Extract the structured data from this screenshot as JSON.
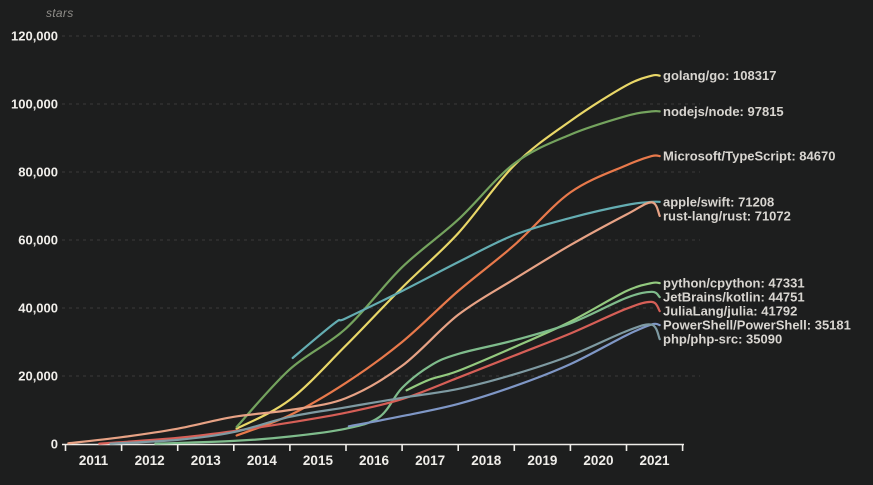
{
  "page": {
    "title": "stars"
  },
  "style": {
    "background": "#1d1e1e",
    "axis_color": "#efede9",
    "grid_color": "#3b3b39",
    "title_color": "#8f8d89",
    "series_label_color": "#d8d5d0",
    "tick_label_color": "#f0eeea"
  },
  "chart_data": {
    "type": "line",
    "title": "stars",
    "xlabel": "",
    "ylabel": "stars",
    "xlim": [
      2011,
      2021.5
    ],
    "ylim": [
      0,
      120000
    ],
    "grid": "horizontal-dashed",
    "legend_position": "right-inline-labels",
    "yticks": {
      "values": [
        0,
        20000,
        40000,
        60000,
        80000,
        100000,
        120000
      ],
      "labels": [
        "0",
        "20,000",
        "40,000",
        "60,000",
        "80,000",
        "100,000",
        "120,000"
      ]
    },
    "xticks": {
      "values": [
        2011,
        2012,
        2013,
        2014,
        2015,
        2016,
        2017,
        2018,
        2019,
        2020,
        2021
      ],
      "labels": [
        "2011",
        "2012",
        "2013",
        "2014",
        "2015",
        "2016",
        "2017",
        "2018",
        "2019",
        "2020",
        "2021"
      ]
    },
    "series": [
      {
        "name": "golang/go",
        "label": "golang/go: 108317",
        "final": 108317,
        "color": "#e9d768",
        "points": [
          [
            2014.05,
            4500
          ],
          [
            2015,
            13000
          ],
          [
            2016,
            29000
          ],
          [
            2017,
            46000
          ],
          [
            2018,
            62000
          ],
          [
            2019,
            82000
          ],
          [
            2020,
            95000
          ],
          [
            2021,
            105500
          ],
          [
            2021.45,
            108317
          ]
        ]
      },
      {
        "name": "nodejs/node",
        "label": "nodejs/node: 97815",
        "final": 97815,
        "color": "#74a35e",
        "points": [
          [
            2014.05,
            5000
          ],
          [
            2015,
            22000
          ],
          [
            2016,
            34000
          ],
          [
            2017,
            52000
          ],
          [
            2018,
            66000
          ],
          [
            2019,
            82500
          ],
          [
            2020,
            91000
          ],
          [
            2021,
            96500
          ],
          [
            2021.45,
            97815
          ]
        ]
      },
      {
        "name": "Microsoft/TypeScript",
        "label": "Microsoft/TypeScript: 84670",
        "final": 84670,
        "color": "#e8794b",
        "points": [
          [
            2014.05,
            2500
          ],
          [
            2015,
            8500
          ],
          [
            2016,
            18000
          ],
          [
            2017,
            30000
          ],
          [
            2018,
            45000
          ],
          [
            2019,
            58500
          ],
          [
            2020,
            74000
          ],
          [
            2021,
            82000
          ],
          [
            2021.45,
            84670
          ]
        ]
      },
      {
        "name": "apple/swift",
        "label": "apple/swift: 71208",
        "final": 71208,
        "color": "#64adb2",
        "points": [
          [
            2015.05,
            25300
          ],
          [
            2015.8,
            35600
          ],
          [
            2016,
            37000
          ],
          [
            2017,
            45000
          ],
          [
            2018,
            53500
          ],
          [
            2019,
            61500
          ],
          [
            2020,
            66500
          ],
          [
            2021,
            70300
          ],
          [
            2021.45,
            71208
          ]
        ]
      },
      {
        "name": "rust-lang/rust",
        "label": "rust-lang/rust: 71072",
        "final": 71072,
        "color": "#e7a285",
        "points": [
          [
            2011.05,
            200
          ],
          [
            2012,
            2000
          ],
          [
            2013,
            4500
          ],
          [
            2014,
            8000
          ],
          [
            2015,
            10000
          ],
          [
            2016,
            13500
          ],
          [
            2017,
            23000
          ],
          [
            2018,
            38000
          ],
          [
            2019,
            48500
          ],
          [
            2020,
            58500
          ],
          [
            2021,
            67500
          ],
          [
            2021.45,
            71072
          ]
        ]
      },
      {
        "name": "python/cpython",
        "label": "python/cpython: 47331",
        "final": 47331,
        "color": "#93ca7f",
        "points": [
          [
            2017.08,
            15800
          ],
          [
            2017.5,
            19000
          ],
          [
            2018,
            21500
          ],
          [
            2019,
            28500
          ],
          [
            2020,
            36000
          ],
          [
            2021,
            45000
          ],
          [
            2021.45,
            47331
          ]
        ]
      },
      {
        "name": "JetBrains/kotlin",
        "label": "JetBrains/kotlin: 44751",
        "final": 44751,
        "color": "#7fbc8c",
        "points": [
          [
            2012.6,
            100
          ],
          [
            2014,
            900
          ],
          [
            2015,
            2200
          ],
          [
            2016,
            4500
          ],
          [
            2016.6,
            8000
          ],
          [
            2017,
            16500
          ],
          [
            2017.5,
            23000
          ],
          [
            2018,
            26500
          ],
          [
            2019,
            30500
          ],
          [
            2020,
            35500
          ],
          [
            2021,
            43000
          ],
          [
            2021.45,
            44751
          ]
        ]
      },
      {
        "name": "JuliaLang/julia",
        "label": "JuliaLang/julia: 41792",
        "final": 41792,
        "color": "#d65f57",
        "points": [
          [
            2011.6,
            100
          ],
          [
            2013,
            1800
          ],
          [
            2014,
            3800
          ],
          [
            2015,
            6300
          ],
          [
            2016,
            9200
          ],
          [
            2017,
            13200
          ],
          [
            2018,
            19500
          ],
          [
            2019,
            26000
          ],
          [
            2020,
            32500
          ],
          [
            2021,
            39800
          ],
          [
            2021.45,
            41792
          ]
        ]
      },
      {
        "name": "PowerShell/PowerShell",
        "label": "PowerShell/PowerShell: 35181",
        "final": 35181,
        "color": "#7f97c6",
        "points": [
          [
            2016.05,
            5200
          ],
          [
            2017,
            8200
          ],
          [
            2018,
            11800
          ],
          [
            2019,
            17000
          ],
          [
            2020,
            23500
          ],
          [
            2021,
            32000
          ],
          [
            2021.45,
            35181
          ]
        ]
      },
      {
        "name": "php/php-src",
        "label": "php/php-src: 35090",
        "final": 35090,
        "color": "#7e9aa2",
        "points": [
          [
            2011.8,
            100
          ],
          [
            2013,
            1200
          ],
          [
            2014,
            3500
          ],
          [
            2015,
            8000
          ],
          [
            2016,
            10800
          ],
          [
            2017,
            13600
          ],
          [
            2018,
            16200
          ],
          [
            2019,
            20500
          ],
          [
            2020,
            26000
          ],
          [
            2021,
            33200
          ],
          [
            2021.45,
            35090
          ]
        ]
      }
    ]
  }
}
